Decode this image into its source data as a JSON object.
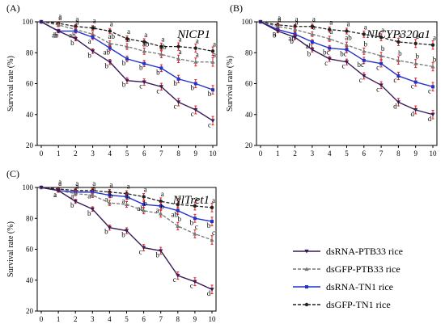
{
  "colors": {
    "dsRNA_PTB33": "#3a1a55",
    "dsGFP_PTB33": "#777777",
    "dsRNA_TN1": "#2233cc",
    "dsGFP_TN1": "#222222",
    "error_bar": "#e02020"
  },
  "legend": [
    {
      "key": "dsRNA_PTB33",
      "label": "dsRNA-PTB33 rice",
      "dashed": false,
      "marker": "tri-down"
    },
    {
      "key": "dsGFP_PTB33",
      "label": "dsGFP-PTB33 rice",
      "dashed": true,
      "marker": "tri-up"
    },
    {
      "key": "dsRNA_TN1",
      "label": "dsRNA-TN1 rice",
      "dashed": false,
      "marker": "square"
    },
    {
      "key": "dsGFP_TN1",
      "label": "dsGFP-TN1 rice",
      "dashed": true,
      "marker": "circle"
    }
  ],
  "chart_data": [
    {
      "type": "line",
      "panel": "(A)",
      "title": "NlCP1",
      "ylabel": "Survival rate (%)",
      "x": [
        0,
        1,
        2,
        3,
        4,
        5,
        6,
        7,
        8,
        9,
        10
      ],
      "ylim": [
        20,
        100
      ],
      "yticks": [
        20,
        40,
        60,
        80,
        100
      ],
      "series": [
        {
          "key": "dsGFP_TN1",
          "values": [
            100,
            99,
            97,
            96,
            94,
            89,
            87,
            84,
            84,
            83,
            81
          ],
          "letters": [
            "",
            "a",
            "a",
            "a",
            "a",
            "a",
            "a",
            "a",
            "a",
            "a",
            "a"
          ]
        },
        {
          "key": "dsGFP_PTB33",
          "values": [
            100,
            98,
            95,
            92,
            86,
            84,
            81,
            79,
            76,
            74,
            74
          ],
          "letters": [
            "",
            "a",
            "a",
            "a",
            "ab",
            "a",
            "ab",
            "ab",
            "a",
            "a",
            "a"
          ]
        },
        {
          "key": "dsRNA_TN1",
          "values": [
            100,
            94,
            94,
            90,
            83,
            76,
            73,
            70,
            63,
            60,
            56
          ],
          "letters": [
            "",
            "ab",
            "ab",
            "a",
            "ab",
            "b",
            "b",
            "b",
            "b",
            "b",
            "b"
          ]
        },
        {
          "key": "dsRNA_PTB33",
          "values": [
            100,
            94,
            89,
            81,
            74,
            62,
            61,
            58,
            48,
            43,
            36
          ],
          "letters": [
            "",
            "b",
            "b",
            "b",
            "b",
            "b",
            "c",
            "c",
            "c",
            "c",
            "c"
          ]
        }
      ]
    },
    {
      "type": "line",
      "panel": "(B)",
      "title": "NlCYP320a1",
      "ylabel": "Survival rate (%)",
      "x": [
        0,
        1,
        2,
        3,
        4,
        5,
        6,
        7,
        8,
        9,
        10
      ],
      "ylim": [
        20,
        100
      ],
      "yticks": [
        20,
        40,
        60,
        80,
        100
      ],
      "series": [
        {
          "key": "dsGFP_TN1",
          "values": [
            100,
            98,
            97,
            97,
            95,
            94,
            92,
            90,
            87,
            86,
            85
          ],
          "letters": [
            "",
            "a",
            "a",
            "a",
            "a",
            "a",
            "a",
            "a",
            "a",
            "a",
            "a"
          ]
        },
        {
          "key": "dsGFP_PTB33",
          "values": [
            100,
            97,
            95,
            92,
            89,
            85,
            81,
            78,
            75,
            73,
            71
          ],
          "letters": [
            "",
            "a",
            "a",
            "a",
            "a",
            "ab",
            "b",
            "b",
            "b",
            "b",
            "b"
          ]
        },
        {
          "key": "dsRNA_TN1",
          "values": [
            100,
            95,
            92,
            87,
            83,
            82,
            75,
            73,
            65,
            61,
            58
          ],
          "letters": [
            "",
            "a",
            "ab",
            "ab",
            "bc",
            "bc",
            "bc",
            "c",
            "c",
            "c",
            "c"
          ]
        },
        {
          "key": "dsRNA_PTB33",
          "values": [
            100,
            94,
            90,
            82,
            76,
            74,
            65,
            59,
            48,
            43,
            40
          ],
          "letters": [
            "",
            "b",
            "b",
            "b",
            "c",
            "c",
            "c",
            "c",
            "d",
            "d",
            "d"
          ]
        }
      ]
    },
    {
      "type": "line",
      "panel": "(C)",
      "title": "NlTret1",
      "ylabel": "Survival rate (%)",
      "x": [
        0,
        1,
        2,
        3,
        4,
        5,
        6,
        7,
        8,
        9,
        10
      ],
      "ylim": [
        20,
        100
      ],
      "yticks": [
        20,
        40,
        60,
        80,
        100
      ],
      "series": [
        {
          "key": "dsGFP_TN1",
          "values": [
            100,
            99,
            98,
            98,
            97,
            96,
            94,
            91,
            89,
            88,
            87
          ],
          "letters": [
            "",
            "a",
            "a",
            "a",
            "a",
            "a",
            "a",
            "a",
            "a",
            "a",
            "a"
          ]
        },
        {
          "key": "dsRNA_TN1",
          "values": [
            100,
            98,
            97,
            97,
            95,
            94,
            89,
            88,
            85,
            80,
            78
          ],
          "letters": [
            "",
            "a",
            "a",
            "a",
            "a",
            "a",
            "ab",
            "a",
            "ab",
            "b",
            "b"
          ]
        },
        {
          "key": "dsGFP_PTB33",
          "values": [
            100,
            98,
            96,
            95,
            90,
            89,
            85,
            83,
            75,
            70,
            66
          ],
          "letters": [
            "",
            "a",
            "a",
            "a",
            "b",
            "b",
            "b",
            "b",
            "b",
            "c",
            "c"
          ]
        },
        {
          "key": "dsRNA_PTB33",
          "values": [
            100,
            98,
            91,
            86,
            74,
            72,
            61,
            59,
            43,
            39,
            34
          ],
          "letters": [
            "",
            "a",
            "b",
            "b",
            "b",
            "b",
            "c",
            "b",
            "c",
            "c",
            "d"
          ]
        }
      ]
    }
  ]
}
